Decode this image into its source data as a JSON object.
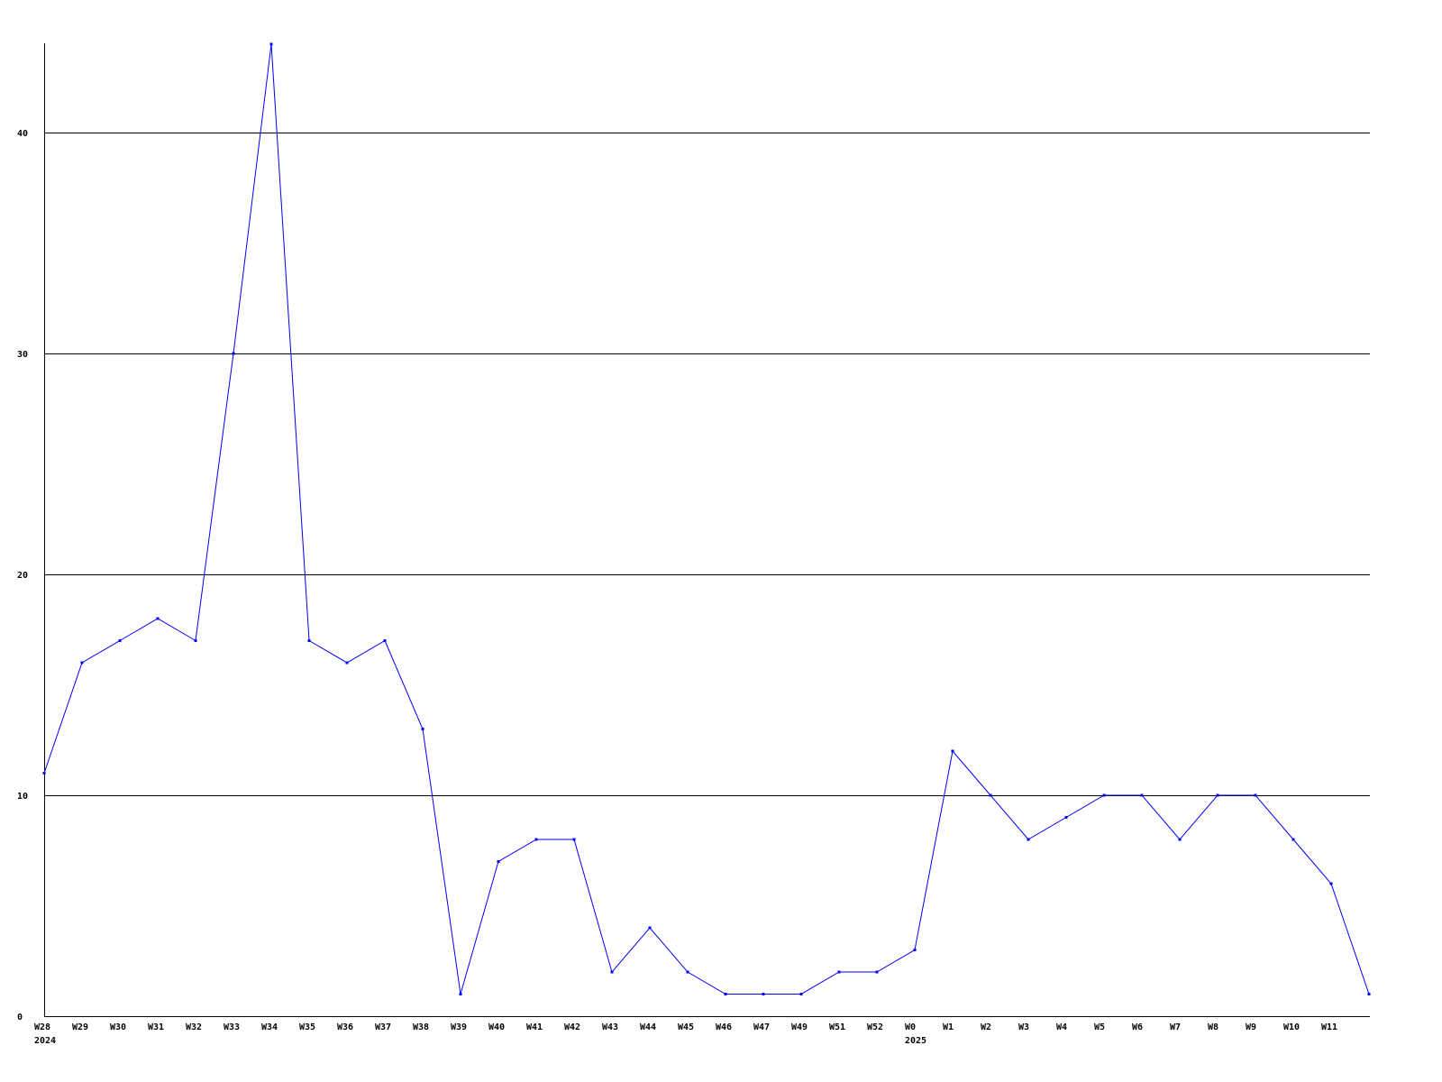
{
  "chart_data": {
    "type": "line",
    "title": "",
    "xlabel": "",
    "ylabel": "",
    "ylim": [
      0,
      44
    ],
    "yticks": [
      0,
      10,
      20,
      30,
      40
    ],
    "grid": "horizontal",
    "colors": {
      "line": "#0000ff",
      "grid": "#000000",
      "axis": "#000000"
    },
    "categories": [
      "W28",
      "W29",
      "W30",
      "W31",
      "W32",
      "W33",
      "W34",
      "W35",
      "W36",
      "W37",
      "W38",
      "W39",
      "W40",
      "W41",
      "W42",
      "W43",
      "W44",
      "W45",
      "W46",
      "W47",
      "W49",
      "W51",
      "W52",
      "W0",
      "W1",
      "W2",
      "W3",
      "W4",
      "W5",
      "W6",
      "W7",
      "W8",
      "W9",
      "W10",
      "W11",
      ""
    ],
    "year_labels": [
      {
        "at": "W28",
        "text": "2024"
      },
      {
        "at": "W0",
        "text": "2025"
      }
    ],
    "series": [
      {
        "values": [
          11,
          16,
          17,
          18,
          17,
          30,
          44,
          17,
          16,
          17,
          13,
          1,
          7,
          8,
          8,
          2,
          4,
          2,
          1,
          1,
          1,
          2,
          2,
          3,
          12,
          10,
          8,
          9,
          10,
          10,
          8,
          10,
          10,
          8,
          6,
          1
        ]
      }
    ]
  }
}
